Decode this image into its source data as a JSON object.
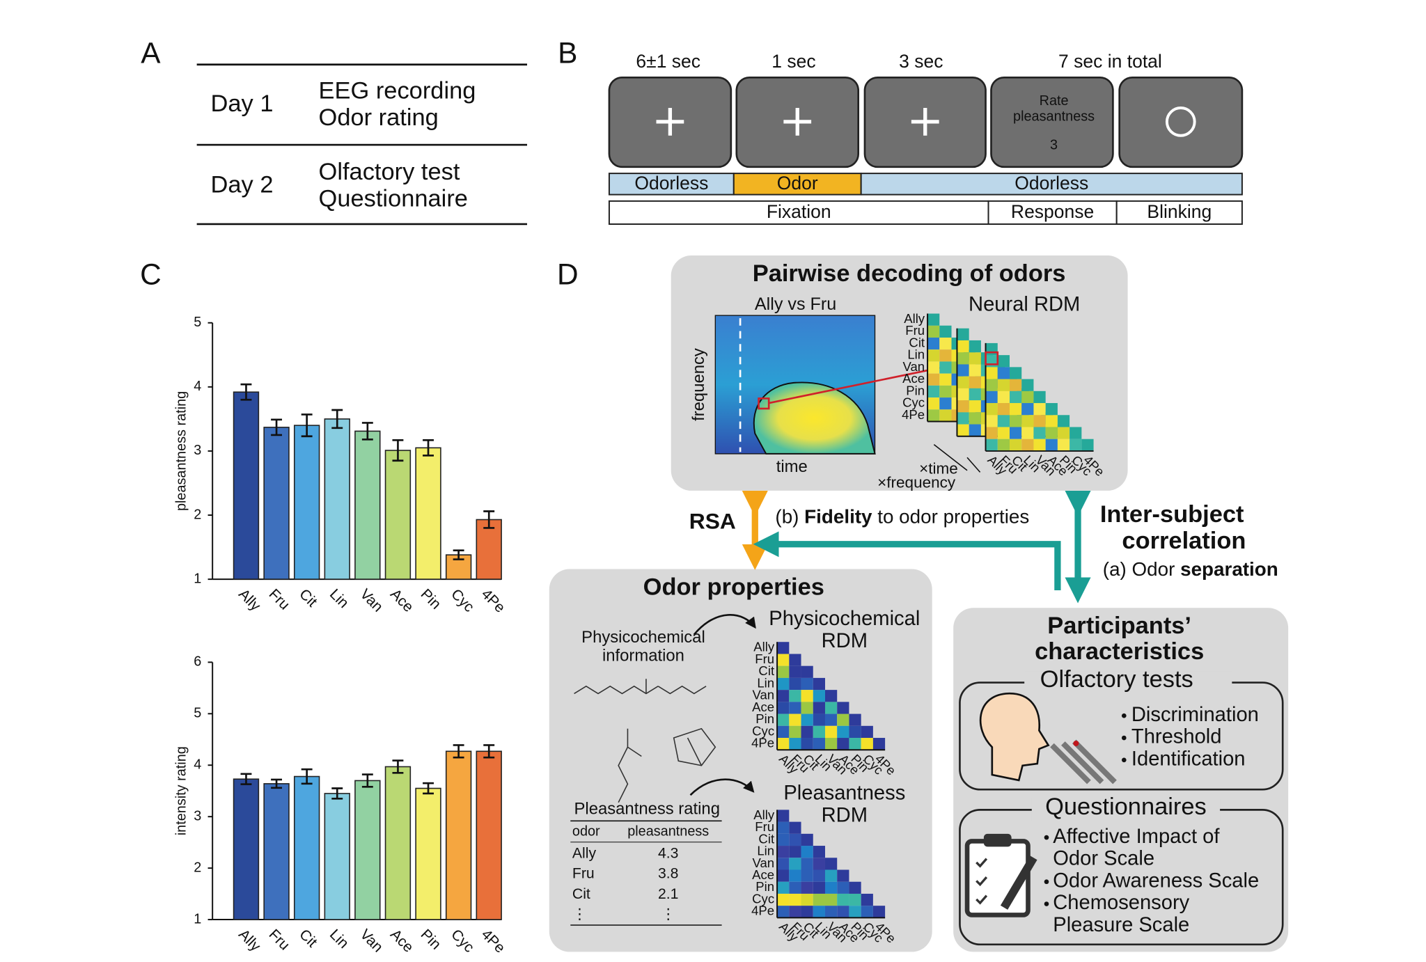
{
  "panel_labels": [
    "A",
    "B",
    "C",
    "D"
  ],
  "panel_a": {
    "rows": [
      {
        "day": "Day 1",
        "items": [
          "EEG recording",
          "Odor rating"
        ]
      },
      {
        "day": "Day 2",
        "items": [
          "Olfactory test",
          "Questionnaire"
        ]
      }
    ]
  },
  "panel_b": {
    "durations": [
      "6±1 sec",
      "1 sec",
      "3 sec",
      "7 sec in total"
    ],
    "rate_prompt": [
      "Rate",
      "pleasantness"
    ],
    "rate_value": 3,
    "odor_phases": [
      "Odorless",
      "Odor",
      "Odorless"
    ],
    "task_phases": [
      "Fixation",
      "Response",
      "Blinking"
    ]
  },
  "chart_data": [
    {
      "type": "bar",
      "y_label": "pleasantness rating",
      "categories": [
        "Ally",
        "Fru",
        "Cit",
        "Lin",
        "Van",
        "Ace",
        "Pin",
        "Cyc",
        "4Pe"
      ],
      "values": [
        3.92,
        3.37,
        3.4,
        3.5,
        3.31,
        3.01,
        3.05,
        1.38,
        1.93
      ],
      "errors": [
        0.12,
        0.12,
        0.17,
        0.14,
        0.13,
        0.16,
        0.12,
        0.07,
        0.13
      ],
      "colors": [
        "#2b4a9a",
        "#3e70bd",
        "#4ea6df",
        "#88cde0",
        "#92d1a2",
        "#bad873",
        "#f3ee6b",
        "#f5a640",
        "#e8703a"
      ],
      "ylim": [
        1,
        5
      ],
      "yticks": [
        1,
        2,
        3,
        4,
        5
      ]
    },
    {
      "type": "bar",
      "y_label": "intensity rating",
      "categories": [
        "Ally",
        "Fru",
        "Cit",
        "Lin",
        "Van",
        "Ace",
        "Pin",
        "Cyc",
        "4Pe"
      ],
      "values": [
        3.73,
        3.64,
        3.78,
        3.45,
        3.7,
        3.97,
        3.55,
        4.27,
        4.27
      ],
      "errors": [
        0.1,
        0.08,
        0.14,
        0.1,
        0.12,
        0.12,
        0.1,
        0.12,
        0.12
      ],
      "colors": [
        "#2b4a9a",
        "#3e70bd",
        "#4ea6df",
        "#88cde0",
        "#92d1a2",
        "#bad873",
        "#f3ee6b",
        "#f5a640",
        "#e8703a"
      ],
      "ylim": [
        1,
        6
      ],
      "yticks": [
        1,
        2,
        3,
        4,
        5,
        6
      ]
    }
  ],
  "panel_d": {
    "decoding_title": "Pairwise decoding of odors",
    "pair_label": "Ally vs Fru",
    "freq_label": "frequency",
    "time_label": "time",
    "neural_rdm": "Neural RDM",
    "stack_labels": [
      "×time",
      "×frequency"
    ],
    "odors": [
      "Ally",
      "Fru",
      "Cit",
      "Lin",
      "Van",
      "Ace",
      "Pin",
      "Cyc",
      "4Pe"
    ],
    "rsa": "RSA",
    "fidelity": [
      "(b)",
      "Fidelity",
      "to odor properties"
    ],
    "isc": [
      "Inter-subject",
      "correlation"
    ],
    "separation": [
      "(a) Odor",
      "separation"
    ],
    "properties_title": "Odor properties",
    "physchem_info": [
      "Physicochemical",
      "information"
    ],
    "physchem_rdm": [
      "Physicochemical",
      "RDM"
    ],
    "pleasantness_rdm": [
      "Pleasantness",
      "RDM"
    ],
    "rating_title": "Pleasantness rating",
    "rating_header": [
      "odor",
      "pleasantness"
    ],
    "rating_rows": [
      [
        "Ally",
        4.3
      ],
      [
        "Fru",
        3.8
      ],
      [
        "Cit",
        2.1
      ],
      [
        "⋮",
        "⋮"
      ]
    ],
    "participants_title": [
      "Participants’",
      "characteristics"
    ],
    "olfactory_title": "Olfactory tests",
    "olfactory_items": [
      "Discrimination",
      "Threshold",
      "Identification"
    ],
    "questionnaire_title": "Questionnaires",
    "questionnaire_items": [
      [
        "Affective Impact of",
        "Odor Scale"
      ],
      [
        "Odor Awareness Scale"
      ],
      [
        "Chemosensory",
        "Pleasure Scale"
      ]
    ]
  }
}
